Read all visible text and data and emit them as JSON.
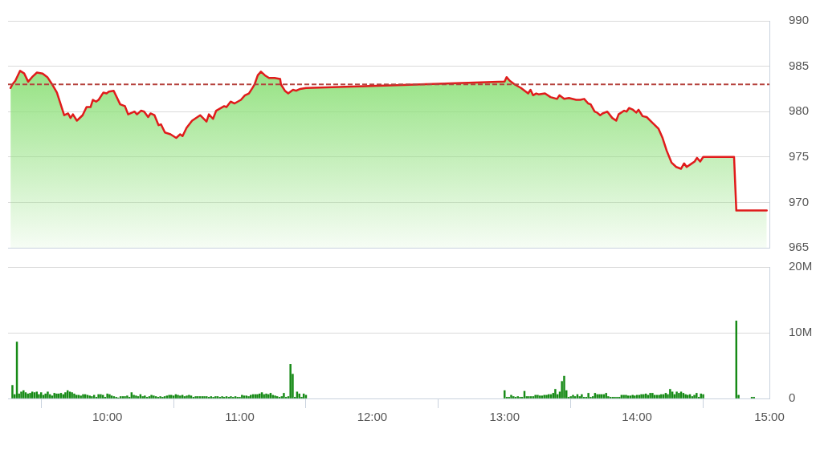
{
  "chart_data": [
    {
      "type": "area",
      "xlim": [
        9.25,
        15
      ],
      "ylim": [
        965,
        990
      ],
      "yticks": [
        965,
        970,
        975,
        980,
        985,
        990
      ],
      "grid": "y",
      "tick_labels": "y",
      "ref_lines": [
        {
          "axis": "y",
          "value": 983.0,
          "color": "#b5413c",
          "line_style": "dashed"
        }
      ],
      "x": [
        9.269,
        9.283,
        9.305,
        9.341,
        9.372,
        9.402,
        9.438,
        9.468,
        9.511,
        9.547,
        9.583,
        9.619,
        9.674,
        9.704,
        9.722,
        9.74,
        9.77,
        9.813,
        9.843,
        9.873,
        9.891,
        9.915,
        9.934,
        9.97,
        9.994,
        10.012,
        10.048,
        10.097,
        10.133,
        10.157,
        10.205,
        10.224,
        10.254,
        10.278,
        10.308,
        10.326,
        10.356,
        10.387,
        10.405,
        10.435,
        10.477,
        10.52,
        10.55,
        10.568,
        10.598,
        10.64,
        10.701,
        10.749,
        10.767,
        10.798,
        10.822,
        10.882,
        10.9,
        10.931,
        10.961,
        11.009,
        11.039,
        11.069,
        11.1,
        11.112,
        11.136,
        11.16,
        11.19,
        11.221,
        11.263,
        11.305,
        11.311,
        11.341,
        11.366,
        11.402,
        11.426,
        11.456,
        11.5,
        13,
        13.015,
        13.039,
        13.076,
        13.124,
        13.178,
        13.196,
        13.215,
        13.239,
        13.257,
        13.305,
        13.347,
        13.396,
        13.414,
        13.45,
        13.486,
        13.541,
        13.571,
        13.601,
        13.631,
        13.65,
        13.68,
        13.698,
        13.722,
        13.74,
        13.776,
        13.813,
        13.843,
        13.861,
        13.903,
        13.921,
        13.94,
        13.97,
        13.994,
        14.012,
        14.042,
        14.073,
        14.115,
        14.163,
        14.193,
        14.224,
        14.26,
        14.296,
        14.332,
        14.356,
        14.375,
        14.405,
        14.435,
        14.453,
        14.477,
        14.5,
        14.733,
        14.75,
        14.98
      ],
      "series": [
        {
          "color": "#e01b1b",
          "values": [
            982.6,
            983.0,
            983.4,
            984.5,
            984.2,
            983.3,
            983.9,
            984.3,
            984.2,
            983.8,
            983.0,
            982.1,
            979.6,
            979.8,
            979.3,
            979.7,
            979.0,
            979.6,
            980.5,
            980.5,
            981.3,
            981.1,
            981.3,
            982.1,
            982.0,
            982.2,
            982.3,
            980.8,
            980.6,
            979.7,
            980.0,
            979.7,
            980.1,
            980.0,
            979.4,
            979.8,
            979.6,
            978.5,
            978.6,
            977.7,
            977.5,
            977.1,
            977.5,
            977.3,
            978.2,
            979.0,
            979.6,
            978.9,
            979.7,
            979.2,
            980.1,
            980.6,
            980.5,
            981.1,
            980.9,
            981.3,
            981.8,
            982.0,
            982.7,
            983.0,
            984.0,
            984.4,
            984.0,
            983.7,
            983.7,
            983.6,
            983.0,
            982.3,
            982.0,
            982.4,
            982.3,
            982.5,
            982.6,
            983.3,
            983.8,
            983.4,
            983.0,
            982.6,
            982.0,
            982.4,
            981.8,
            982.0,
            981.9,
            982.0,
            981.6,
            981.4,
            981.8,
            981.4,
            981.5,
            981.3,
            981.3,
            981.4,
            980.9,
            980.8,
            980.0,
            979.9,
            979.6,
            979.8,
            980.0,
            979.3,
            979.0,
            979.7,
            980.1,
            980.0,
            980.4,
            980.2,
            979.9,
            980.2,
            979.5,
            979.4,
            978.8,
            978.1,
            977.1,
            975.7,
            974.4,
            973.9,
            973.7,
            974.3,
            973.9,
            974.2,
            974.5,
            974.9,
            974.5,
            975.0,
            975.0,
            969.1,
            969.1
          ]
        }
      ]
    },
    {
      "type": "bar",
      "xlim": [
        9.25,
        15
      ],
      "xticks": [
        {
          "value": 10,
          "label": "10:00"
        },
        {
          "value": 11,
          "label": "11:00"
        },
        {
          "value": 12,
          "label": "12:00"
        },
        {
          "value": 13,
          "label": "13:00"
        },
        {
          "value": 14,
          "label": "14:00"
        },
        {
          "value": 15,
          "label": "15:00"
        }
      ],
      "ylim": [
        0,
        20
      ],
      "yticks": [
        0,
        {
          "value": 10,
          "label": "10M"
        },
        {
          "value": 20,
          "label": "20M"
        }
      ],
      "grid": "y",
      "color": "#168a16",
      "x": [
        9.283,
        9.3,
        9.317,
        9.333,
        9.35,
        9.367,
        9.383,
        9.4,
        9.417,
        9.433,
        9.45,
        9.467,
        9.483,
        9.5,
        9.517,
        9.533,
        9.55,
        9.567,
        9.583,
        9.6,
        9.617,
        9.633,
        9.65,
        9.667,
        9.683,
        9.7,
        9.717,
        9.733,
        9.75,
        9.767,
        9.783,
        9.8,
        9.817,
        9.833,
        9.85,
        9.867,
        9.883,
        9.9,
        9.917,
        9.933,
        9.95,
        9.967,
        9.983,
        10,
        10.017,
        10.033,
        10.05,
        10.067,
        10.083,
        10.1,
        10.117,
        10.133,
        10.15,
        10.167,
        10.183,
        10.2,
        10.217,
        10.233,
        10.25,
        10.267,
        10.283,
        10.3,
        10.317,
        10.333,
        10.35,
        10.367,
        10.383,
        10.4,
        10.417,
        10.433,
        10.45,
        10.467,
        10.483,
        10.5,
        10.517,
        10.533,
        10.55,
        10.567,
        10.583,
        10.6,
        10.617,
        10.633,
        10.65,
        10.667,
        10.683,
        10.7,
        10.717,
        10.733,
        10.75,
        10.767,
        10.783,
        10.8,
        10.817,
        10.833,
        10.85,
        10.867,
        10.883,
        10.9,
        10.917,
        10.933,
        10.95,
        10.967,
        10.983,
        11,
        11.017,
        11.033,
        11.05,
        11.067,
        11.083,
        11.1,
        11.117,
        11.133,
        11.15,
        11.167,
        11.183,
        11.2,
        11.217,
        11.233,
        11.25,
        11.267,
        11.283,
        11.3,
        11.317,
        11.333,
        11.35,
        11.367,
        11.383,
        11.4,
        11.417,
        11.433,
        11.45,
        11.467,
        11.483,
        11.5,
        13,
        13.017,
        13.033,
        13.05,
        13.067,
        13.083,
        13.1,
        13.117,
        13.133,
        13.15,
        13.167,
        13.183,
        13.2,
        13.217,
        13.233,
        13.25,
        13.267,
        13.283,
        13.3,
        13.317,
        13.333,
        13.35,
        13.367,
        13.383,
        13.4,
        13.417,
        13.433,
        13.45,
        13.467,
        13.483,
        13.5,
        13.517,
        13.533,
        13.55,
        13.567,
        13.583,
        13.6,
        13.617,
        13.633,
        13.65,
        13.667,
        13.683,
        13.7,
        13.717,
        13.733,
        13.75,
        13.767,
        13.783,
        13.8,
        13.817,
        13.833,
        13.85,
        13.867,
        13.883,
        13.9,
        13.917,
        13.933,
        13.95,
        13.967,
        13.983,
        14,
        14.017,
        14.033,
        14.05,
        14.067,
        14.083,
        14.1,
        14.117,
        14.133,
        14.15,
        14.167,
        14.183,
        14.2,
        14.217,
        14.233,
        14.25,
        14.267,
        14.283,
        14.3,
        14.317,
        14.333,
        14.35,
        14.367,
        14.383,
        14.4,
        14.417,
        14.433,
        14.45,
        14.467,
        14.483,
        14.5,
        14.75,
        14.767,
        14.867,
        14.883
      ],
      "values": [
        2.0,
        0.6,
        8.6,
        0.7,
        1.0,
        1.2,
        0.9,
        0.7,
        0.8,
        1.0,
        0.9,
        1.0,
        0.6,
        0.9,
        0.5,
        0.7,
        1.0,
        0.6,
        0.4,
        0.8,
        0.7,
        0.7,
        0.8,
        0.6,
        0.9,
        1.2,
        1.0,
        0.9,
        0.7,
        0.5,
        0.5,
        0.4,
        0.6,
        0.6,
        0.5,
        0.4,
        0.3,
        0.5,
        0.2,
        0.6,
        0.6,
        0.5,
        0.2,
        0.7,
        0.6,
        0.4,
        0.3,
        0.2,
        0.1,
        0.3,
        0.3,
        0.3,
        0.4,
        0.2,
        0.9,
        0.5,
        0.4,
        0.3,
        0.6,
        0.3,
        0.4,
        0.2,
        0.3,
        0.5,
        0.4,
        0.3,
        0.2,
        0.3,
        0.2,
        0.3,
        0.4,
        0.5,
        0.5,
        0.4,
        0.6,
        0.5,
        0.4,
        0.5,
        0.3,
        0.4,
        0.5,
        0.4,
        0.2,
        0.3,
        0.3,
        0.3,
        0.3,
        0.3,
        0.3,
        0.2,
        0.3,
        0.2,
        0.3,
        0.3,
        0.2,
        0.3,
        0.2,
        0.3,
        0.2,
        0.3,
        0.2,
        0.3,
        0.2,
        0.2,
        0.5,
        0.4,
        0.4,
        0.3,
        0.5,
        0.6,
        0.6,
        0.6,
        0.7,
        0.9,
        0.6,
        0.7,
        0.6,
        0.8,
        0.5,
        0.4,
        0.3,
        0.2,
        0.3,
        0.8,
        0.2,
        0.3,
        5.2,
        3.7,
        0.2,
        1.0,
        0.7,
        0.2,
        0.7,
        0.5,
        1.2,
        0.2,
        0.2,
        0.5,
        0.3,
        0.2,
        0.3,
        0.2,
        0.2,
        1.1,
        0.3,
        0.3,
        0.3,
        0.3,
        0.5,
        0.5,
        0.4,
        0.4,
        0.5,
        0.5,
        0.6,
        0.6,
        0.8,
        1.4,
        0.6,
        1.0,
        2.6,
        3.4,
        1.2,
        0.2,
        0.3,
        0.5,
        0.3,
        0.6,
        0.3,
        0.6,
        0.2,
        0.2,
        0.8,
        0.2,
        0.3,
        0.8,
        0.6,
        0.6,
        0.6,
        0.6,
        0.8,
        0.3,
        0.2,
        0.2,
        0.2,
        0.2,
        0.2,
        0.5,
        0.5,
        0.5,
        0.4,
        0.4,
        0.5,
        0.4,
        0.5,
        0.5,
        0.6,
        0.6,
        0.7,
        0.5,
        0.8,
        0.8,
        0.5,
        0.5,
        0.5,
        0.6,
        0.6,
        0.8,
        0.6,
        1.4,
        1.0,
        0.6,
        1.0,
        0.8,
        1.0,
        0.8,
        0.6,
        0.5,
        0.6,
        0.3,
        0.5,
        0.8,
        0.2,
        0.7,
        0.6,
        11.8,
        0.5,
        0.2,
        0.2
      ]
    }
  ]
}
